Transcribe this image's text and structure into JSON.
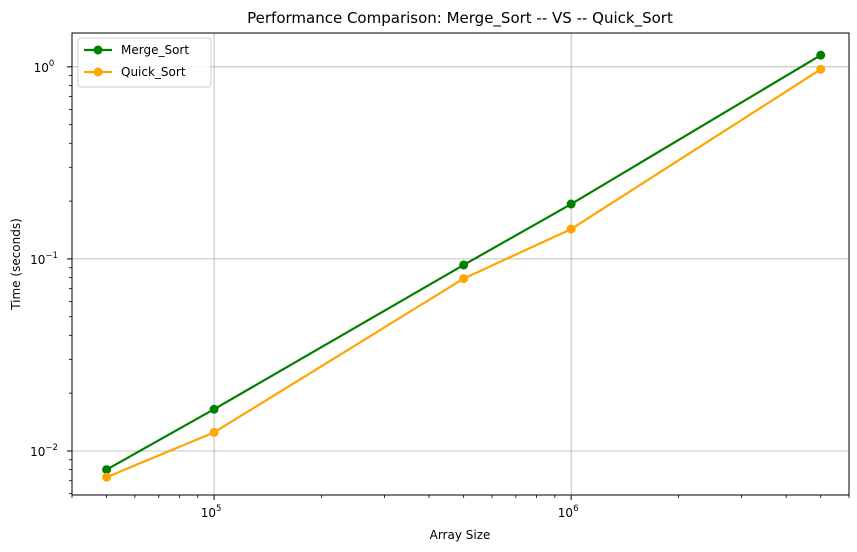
{
  "chart_data": {
    "type": "line",
    "title": "Performance Comparison: Merge_Sort -- VS -- Quick_Sort",
    "xlabel": "Array Size",
    "ylabel": "Time (seconds)",
    "xscale": "log",
    "yscale": "log",
    "x": [
      50000,
      100000,
      500000,
      1000000,
      5000000
    ],
    "series": [
      {
        "name": "Merge_Sort",
        "color": "#008000",
        "values": [
          0.008,
          0.0165,
          0.093,
          0.193,
          1.15
        ]
      },
      {
        "name": "Quick_Sort",
        "color": "#ffa500",
        "values": [
          0.0073,
          0.0125,
          0.079,
          0.143,
          0.97
        ]
      }
    ],
    "xlim": [
      40000,
      6000000
    ],
    "ylim": [
      0.0059,
      1.5
    ],
    "x_ticks": [
      {
        "value": 100000,
        "base": "10",
        "exp": "5"
      },
      {
        "value": 1000000,
        "base": "10",
        "exp": "6"
      }
    ],
    "y_ticks": [
      {
        "value": 0.01,
        "base": "10",
        "exp": "−2"
      },
      {
        "value": 0.1,
        "base": "10",
        "exp": "−1"
      },
      {
        "value": 1,
        "base": "10",
        "exp": "0"
      }
    ],
    "grid": true,
    "legend_position": "top-left"
  }
}
